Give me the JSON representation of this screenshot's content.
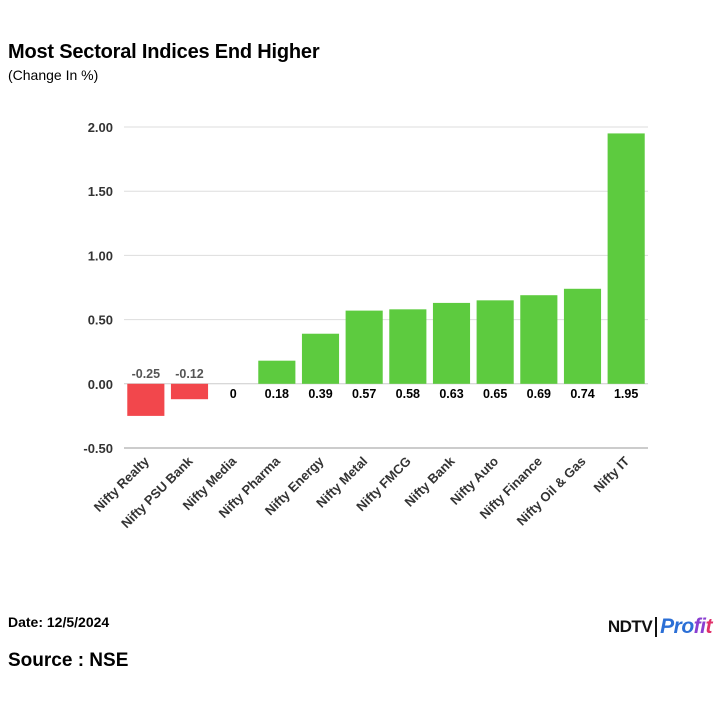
{
  "header": {
    "title": "Most Sectoral Indices End Higher",
    "subtitle": "(Change In %)"
  },
  "footer": {
    "date": "Date: 12/5/2024",
    "source": "Source : NSE",
    "logo_part1": "NDTV",
    "logo_part2a": "Pro",
    "logo_part2b": "fi",
    "logo_part2c": "t"
  },
  "colors": {
    "positive": "#5dcb3f",
    "negative": "#f2474c",
    "grid": "#dddddd",
    "axis": "#9a9a9a"
  },
  "chart_data": {
    "type": "bar",
    "title": "Most Sectoral Indices End Higher",
    "subtitle": "(Change In %)",
    "xlabel": "",
    "ylabel": "",
    "ylim": [
      -0.5,
      2.0
    ],
    "yticks": [
      2.0,
      1.5,
      1.0,
      0.5,
      0.0,
      -0.5
    ],
    "ytick_labels": [
      "2.00",
      "1.50",
      "1.00",
      "0.50",
      "0.00",
      "-0.50"
    ],
    "grid": true,
    "categories": [
      "Nifty Realty",
      "Nifty PSU Bank",
      "Nifty Media",
      "Nifty Pharma",
      "Nifty Energy",
      "Nifty Metal",
      "Nifty FMCG",
      "Nifty Bank",
      "Nifty Auto",
      "Nifty Finance",
      "Nifty Oil & Gas",
      "Nifty IT"
    ],
    "values": [
      -0.25,
      -0.12,
      0,
      0.18,
      0.39,
      0.57,
      0.58,
      0.63,
      0.65,
      0.69,
      0.74,
      1.95
    ],
    "value_labels": [
      "-0.25",
      "-0.12",
      "0",
      "0.18",
      "0.39",
      "0.57",
      "0.58",
      "0.63",
      "0.65",
      "0.69",
      "0.74",
      "1.95"
    ]
  }
}
